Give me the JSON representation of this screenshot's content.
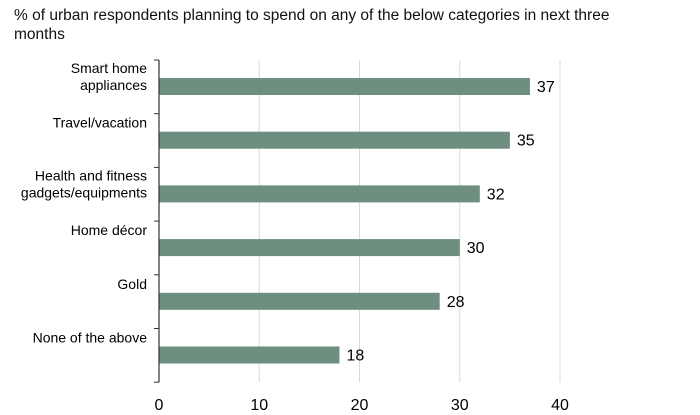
{
  "chart_data": {
    "type": "bar",
    "orientation": "horizontal",
    "title": "% of urban respondents planning to spend on any of the below categories in next three months",
    "categories": [
      [
        "Smart home",
        "appliances"
      ],
      [
        "Travel/vacation"
      ],
      [
        "Health and fitness",
        "gadgets/equipments"
      ],
      [
        "Home décor"
      ],
      [
        "Gold"
      ],
      [
        "None of the above"
      ]
    ],
    "values": [
      37,
      35,
      32,
      30,
      28,
      18
    ],
    "xlim": [
      0,
      40
    ],
    "xticks": [
      0,
      10,
      20,
      30,
      40
    ],
    "grid": true,
    "bar_color": "#6e8e80",
    "grid_color": "#d9d9d9",
    "data_labels": true
  }
}
